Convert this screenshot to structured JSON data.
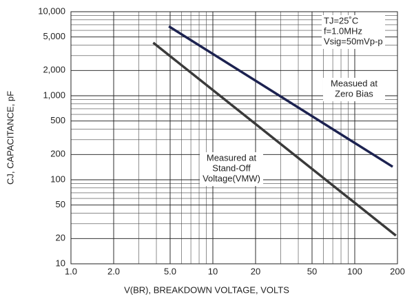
{
  "chart_data": {
    "type": "line",
    "x_label": "V(BR), BREAKDOWN VOLTAGE, VOLTS",
    "y_label": "CJ, CAPACITANCE, pF",
    "log_x": true,
    "log_y": true,
    "grid": true,
    "xlim": [
      1,
      200
    ],
    "ylim": [
      10,
      10000
    ],
    "xticks": [
      {
        "value": 1,
        "label": "1.0"
      },
      {
        "value": 2,
        "label": "2.0"
      },
      {
        "value": 5,
        "label": "5.0"
      },
      10,
      20,
      50,
      100,
      200
    ],
    "yticks": [
      10,
      20,
      50,
      100,
      200,
      500,
      {
        "value": 1000,
        "label": "1,000"
      },
      {
        "value": 2000,
        "label": "2,000"
      },
      {
        "value": 5000,
        "label": "5,000"
      },
      {
        "value": 10000,
        "label": "10,000"
      }
    ],
    "series": [
      {
        "color": "#1c2250",
        "x": [
          4.9,
          185
        ],
        "values": [
          6700,
          143
        ]
      },
      {
        "color": "#3a3a3a",
        "x": [
          3.8,
          195
        ],
        "values": [
          4280,
          21.7
        ]
      }
    ],
    "annotations": [
      [
        "TJ=25˚C",
        "f=1.0MHz",
        "Vsig=50mVp-p"
      ],
      [
        "Measued at",
        "Zero Bias"
      ],
      [
        "Measured at",
        "Stand-Off",
        "Voltage(VMW)"
      ]
    ]
  }
}
